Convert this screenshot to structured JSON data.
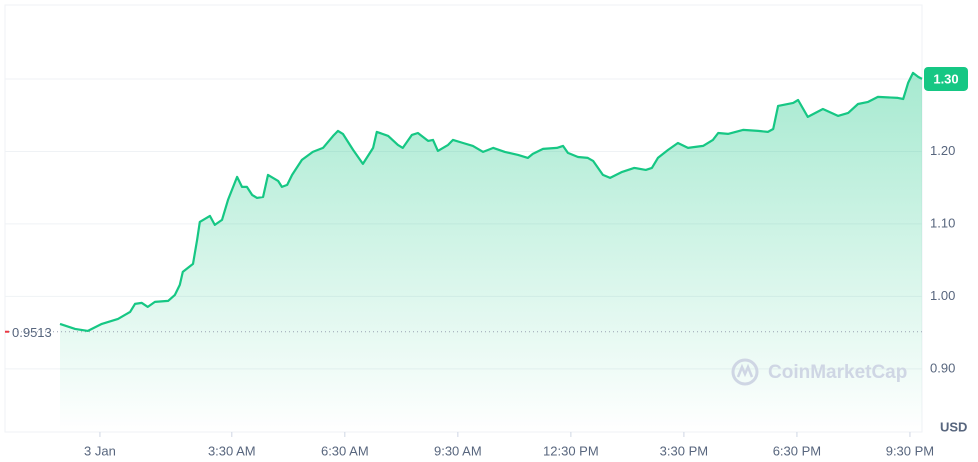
{
  "chart_data": {
    "type": "line",
    "color": "#16c784",
    "grid": true,
    "x": [
      -1.06,
      -0.66,
      -0.32,
      0.05,
      0.48,
      0.8,
      0.93,
      1.11,
      1.27,
      1.46,
      1.81,
      1.99,
      2.12,
      2.2,
      2.47,
      2.58,
      2.65,
      2.92,
      3.05,
      3.24,
      3.4,
      3.64,
      3.77,
      3.9,
      4.04,
      4.17,
      4.33,
      4.46,
      4.73,
      4.83,
      4.97,
      5.1,
      5.36,
      5.65,
      5.92,
      6.19,
      6.32,
      6.45,
      6.72,
      6.98,
      7.25,
      7.35,
      7.65,
      7.91,
      8.04,
      8.28,
      8.44,
      8.71,
      8.84,
      8.97,
      9.24,
      9.37,
      9.64,
      9.9,
      10.17,
      10.44,
      10.75,
      11.1,
      11.36,
      11.49,
      11.76,
      12.13,
      12.29,
      12.42,
      12.69,
      12.95,
      13.09,
      13.35,
      13.54,
      13.86,
      14.18,
      14.49,
      14.65,
      14.81,
      15.08,
      15.34,
      15.61,
      16.01,
      16.27,
      16.41,
      16.67,
      17.07,
      17.47,
      17.73,
      17.87,
      18.0,
      18.4,
      18.53,
      18.79,
      19.19,
      19.59,
      19.86,
      20.12,
      20.39,
      20.65,
      21.18,
      21.32,
      21.45,
      21.58,
      21.72,
      21.82
    ],
    "values": [
      0.9621,
      0.9552,
      0.9525,
      0.9621,
      0.969,
      0.9787,
      0.9897,
      0.9911,
      0.9856,
      0.9925,
      0.9939,
      1.0021,
      1.0159,
      1.0339,
      1.0449,
      1.078,
      1.1028,
      1.1111,
      1.0987,
      1.1056,
      1.1331,
      1.1649,
      1.1511,
      1.1511,
      1.14,
      1.1359,
      1.1373,
      1.1676,
      1.1593,
      1.1511,
      1.1538,
      1.1676,
      1.1883,
      1.1993,
      1.2049,
      1.2214,
      1.2283,
      1.2242,
      1.2021,
      1.1828,
      1.2049,
      1.2269,
      1.2214,
      1.209,
      1.2049,
      1.2228,
      1.2255,
      1.2145,
      1.2159,
      1.2007,
      1.209,
      1.2159,
      1.2117,
      1.2076,
      1.1993,
      1.2049,
      1.1993,
      1.1952,
      1.1911,
      1.1966,
      1.2035,
      1.2049,
      1.2076,
      1.198,
      1.1924,
      1.1911,
      1.1869,
      1.1676,
      1.1635,
      1.1718,
      1.1773,
      1.1745,
      1.1773,
      1.1911,
      1.2021,
      1.2117,
      1.2049,
      1.2076,
      1.2159,
      1.2255,
      1.2242,
      1.2297,
      1.2283,
      1.2269,
      1.231,
      1.2628,
      1.2669,
      1.271,
      1.2476,
      1.2586,
      1.249,
      1.2531,
      1.2655,
      1.2683,
      1.2752,
      1.2738,
      1.2724,
      1.2945,
      1.3083,
      1.3028,
      1.3
    ],
    "xlim": [
      -2.52,
      21.82
    ],
    "ylim": [
      0.813,
      1.402
    ],
    "xticks": [
      {
        "value": 0,
        "label": "3 Jan"
      },
      {
        "value": 3.5,
        "label": "3:30 AM"
      },
      {
        "value": 6.5,
        "label": "6:30 AM"
      },
      {
        "value": 9.5,
        "label": "9:30 AM"
      },
      {
        "value": 12.5,
        "label": "12:30 PM"
      },
      {
        "value": 15.5,
        "label": "3:30 PM"
      },
      {
        "value": 18.5,
        "label": "6:30 PM"
      },
      {
        "value": 21.5,
        "label": "9:30 PM"
      }
    ],
    "yticks": [
      {
        "value": 0.9,
        "label": "0.90"
      },
      {
        "value": 1,
        "label": "1.00"
      },
      {
        "value": 1.1,
        "label": "1.10"
      },
      {
        "value": 1.2,
        "label": "1.20"
      },
      {
        "value": 1.3,
        "label": "1.30"
      }
    ],
    "reference_value": 0.9513,
    "current_price": {
      "value": 1.3,
      "label": "1.30"
    },
    "y_unit": "USD",
    "watermark": "CoinMarketCap"
  }
}
